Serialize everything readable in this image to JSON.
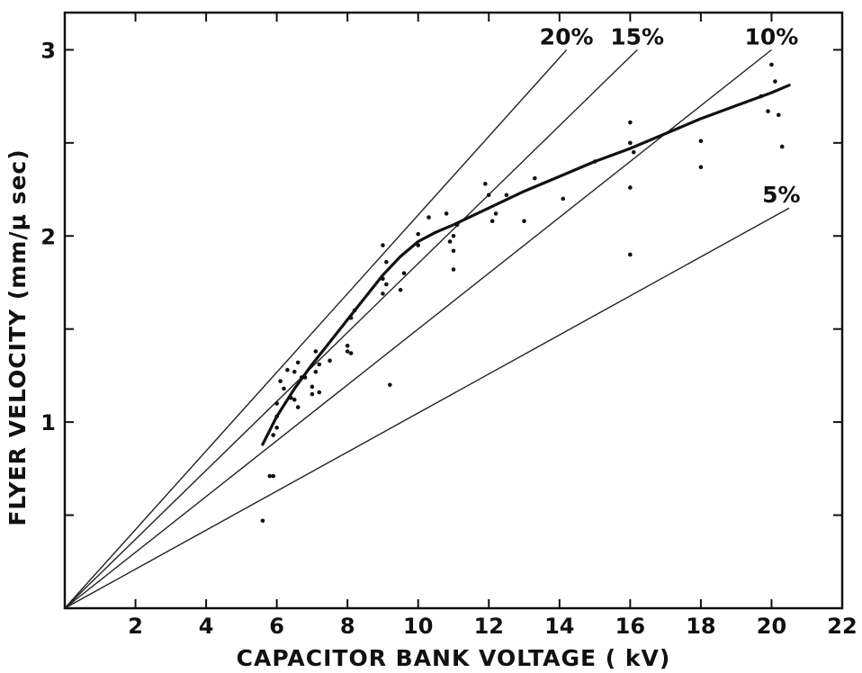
{
  "chart_data": {
    "type": "scatter",
    "xlabel": "CAPACITOR BANK VOLTAGE ( kV)",
    "ylabel": "FLYER VELOCITY (mm/μ sec)",
    "xlim": [
      0,
      22
    ],
    "ylim": [
      0,
      3.2
    ],
    "x_ticks": [
      2,
      4,
      6,
      8,
      10,
      12,
      14,
      16,
      18,
      20,
      22
    ],
    "y_tick_marks": [
      0.5,
      1,
      1.5,
      2,
      2.5,
      3
    ],
    "y_tick_labels": [
      1,
      2,
      3
    ],
    "grid": false,
    "reference_lines": [
      {
        "label": "20%",
        "x": [
          0,
          14.2
        ],
        "y": [
          0,
          3.0
        ]
      },
      {
        "label": "15%",
        "x": [
          0,
          16.2
        ],
        "y": [
          0,
          3.0
        ]
      },
      {
        "label": "10%",
        "x": [
          0,
          20.0
        ],
        "y": [
          0,
          3.0
        ]
      },
      {
        "label": "5%",
        "x": [
          0,
          20.5
        ],
        "y": [
          0,
          2.15
        ]
      }
    ],
    "fit_curve": {
      "x": [
        5.6,
        6.0,
        6.5,
        7.0,
        7.5,
        8.0,
        8.5,
        9.0,
        9.5,
        10.0,
        10.5,
        11.0,
        12.0,
        13.0,
        14.0,
        15.0,
        16.0,
        17.0,
        18.0,
        19.0,
        20.0,
        20.5
      ],
      "y": [
        0.88,
        1.03,
        1.18,
        1.31,
        1.43,
        1.55,
        1.67,
        1.79,
        1.89,
        1.97,
        2.02,
        2.06,
        2.15,
        2.24,
        2.32,
        2.4,
        2.47,
        2.55,
        2.63,
        2.7,
        2.77,
        2.81
      ]
    },
    "points": {
      "x": [
        5.6,
        5.8,
        5.9,
        5.9,
        6.0,
        6.0,
        6.1,
        6.0,
        6.2,
        6.3,
        6.4,
        6.5,
        6.5,
        6.6,
        6.6,
        6.7,
        6.8,
        7.0,
        7.0,
        7.1,
        7.1,
        7.2,
        7.2,
        7.5,
        8.0,
        8.0,
        8.1,
        8.1,
        8.2,
        9.0,
        9.0,
        9.0,
        9.1,
        9.1,
        9.2,
        9.5,
        9.6,
        10.0,
        10.0,
        10.3,
        10.8,
        10.9,
        11.0,
        11.0,
        11.0,
        11.1,
        11.9,
        12.0,
        12.1,
        12.2,
        12.5,
        13.0,
        13.3,
        14.1,
        15.0,
        16.0,
        16.0,
        16.0,
        16.0,
        16.1,
        18.0,
        18.0,
        19.7,
        19.9,
        20.0,
        20.1,
        20.2,
        20.3
      ],
      "y": [
        0.47,
        0.71,
        0.71,
        0.93,
        0.97,
        1.1,
        1.22,
        1.03,
        1.18,
        1.28,
        1.13,
        1.12,
        1.27,
        1.32,
        1.08,
        1.24,
        1.24,
        1.15,
        1.19,
        1.27,
        1.38,
        1.31,
        1.16,
        1.33,
        1.38,
        1.41,
        1.37,
        1.56,
        1.6,
        1.95,
        1.77,
        1.69,
        1.86,
        1.74,
        1.2,
        1.71,
        1.8,
        2.01,
        1.95,
        2.1,
        2.12,
        1.97,
        2.0,
        1.92,
        1.82,
        2.06,
        2.28,
        2.22,
        2.08,
        2.12,
        2.22,
        2.08,
        2.31,
        2.2,
        2.4,
        2.61,
        2.5,
        2.26,
        1.9,
        2.45,
        2.51,
        2.37,
        2.75,
        2.67,
        2.92,
        2.83,
        2.65,
        2.48
      ]
    }
  }
}
